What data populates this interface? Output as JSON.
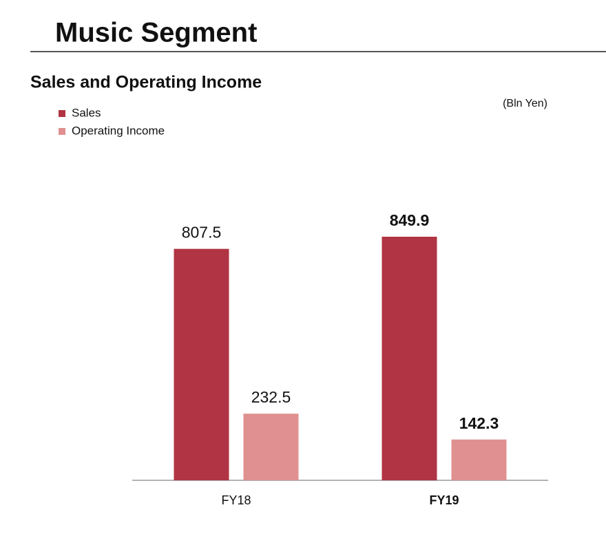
{
  "chart_data": {
    "type": "bar",
    "title": "Music Segment",
    "subtitle": "Sales and Operating Income",
    "unit": "(Bln Yen)",
    "categories": [
      "FY18",
      "FY19"
    ],
    "series": [
      {
        "name": "Sales",
        "color": "#b03443",
        "values": [
          807.5,
          849.9
        ]
      },
      {
        "name": "Operating Income",
        "color": "#e09090",
        "values": [
          232.5,
          142.3
        ]
      }
    ],
    "legend": "top-left"
  }
}
